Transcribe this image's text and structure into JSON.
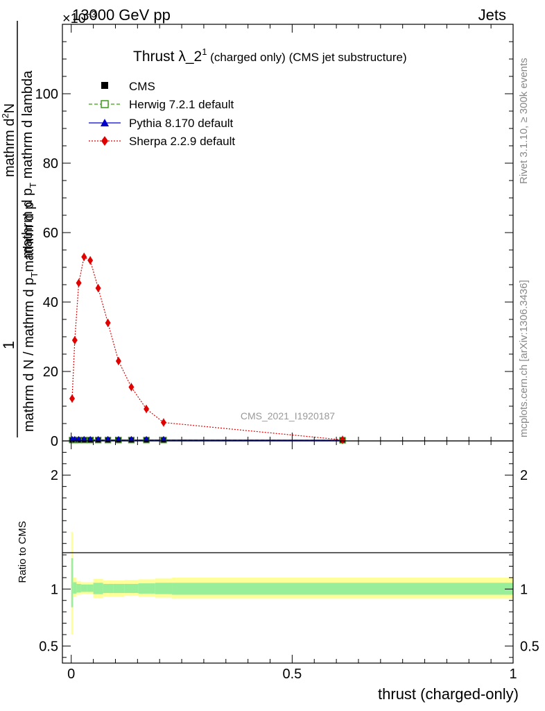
{
  "header": {
    "left": "13000 GeV pp",
    "right": "Jets",
    "exponent": "×10",
    "exponent_power": "−3"
  },
  "side_labels": {
    "upper": "Rivet 3.1.10, ≥ 300k events",
    "lower": "mcplots.cern.ch [arXiv:1306.3436]"
  },
  "title": {
    "main": "Thrust λ_2",
    "sup": "1",
    "rest": " (charged only) (CMS jet substructure)"
  },
  "watermark": "CMS_2021_I1920187",
  "ylabel_parts": {
    "one": "1",
    "denominator": "mathrm d N / mathrm d p",
    "denominator_sub": "T",
    "denominator_rest": "mathrm d p",
    "numerator": "mathrm d",
    "numerator_sup": "2",
    "numerator_rest": "N",
    "numerator_line2": "mathrm d p",
    "numerator_line2_sub": "T",
    "numerator_line2_rest": " mathrm d lambda"
  },
  "legend": [
    {
      "label": "CMS",
      "color": "#000000",
      "marker": "square-filled"
    },
    {
      "label": "Herwig 7.2.1 default",
      "color": "#3a9a17",
      "marker": "square-open",
      "dash": "dashed"
    },
    {
      "label": "Pythia 8.170 default",
      "color": "#0000cc",
      "marker": "triangle",
      "dash": "solid"
    },
    {
      "label": "Sherpa 2.2.9 default",
      "color": "#e00000",
      "marker": "diamond",
      "dash": "dotted"
    }
  ],
  "chart_data": [
    {
      "type": "line",
      "title": "Thrust λ_2^1 (charged only) (CMS jet substructure)",
      "xlim": [
        -0.02,
        1.0
      ],
      "ylim": [
        0,
        120
      ],
      "y_ticks": [
        0,
        20,
        40,
        60,
        80,
        100
      ],
      "series": [
        {
          "name": "Sherpa 2.2.9 default",
          "x": [
            0.002,
            0.008,
            0.017,
            0.029,
            0.043,
            0.061,
            0.083,
            0.107,
            0.136,
            0.17,
            0.209,
            0.614
          ],
          "values": [
            12.2,
            29.0,
            45.5,
            53.0,
            52.0,
            44.0,
            34.0,
            23.0,
            15.5,
            9.2,
            5.3,
            0.3
          ]
        },
        {
          "name": "CMS",
          "x": [
            0.002,
            0.008,
            0.017,
            0.029,
            0.043,
            0.061,
            0.083,
            0.107,
            0.136,
            0.17,
            0.209,
            0.614
          ],
          "values": [
            0.05,
            0.05,
            0.05,
            0.05,
            0.05,
            0.05,
            0.05,
            0.05,
            0.05,
            0.05,
            0.05,
            0.0
          ]
        },
        {
          "name": "Herwig 7.2.1 default",
          "x": [
            0.002,
            0.008,
            0.017,
            0.029,
            0.043,
            0.061,
            0.083,
            0.107,
            0.136,
            0.17,
            0.209,
            0.614
          ],
          "values": [
            0.05,
            0.05,
            0.05,
            0.05,
            0.05,
            0.05,
            0.05,
            0.05,
            0.05,
            0.05,
            0.05,
            0.0
          ]
        },
        {
          "name": "Pythia 8.170 default",
          "x": [
            0.002,
            0.008,
            0.017,
            0.029,
            0.043,
            0.061,
            0.083,
            0.107,
            0.136,
            0.17,
            0.209,
            0.614
          ],
          "values": [
            0.05,
            0.05,
            0.05,
            0.05,
            0.05,
            0.05,
            0.05,
            0.05,
            0.05,
            0.05,
            0.05,
            0.0
          ]
        }
      ]
    },
    {
      "type": "area",
      "ylabel": "Ratio to CMS",
      "xlabel": "thrust (charged-only)",
      "xlim": [
        -0.02,
        1.0
      ],
      "ylim": [
        0.35,
        2.3
      ],
      "y_ticks": [
        0.5,
        1,
        2
      ],
      "x_ticks": [
        0,
        0.5,
        1
      ],
      "bands": {
        "edges": [
          0.0,
          0.004,
          0.012,
          0.022,
          0.036,
          0.05,
          0.072,
          0.095,
          0.12,
          0.152,
          0.19,
          0.228,
          1.0
        ],
        "stat_sys_lo": [
          0.6,
          0.93,
          0.95,
          0.955,
          0.955,
          0.92,
          0.935,
          0.935,
          0.94,
          0.935,
          0.925,
          0.915
        ],
        "stat_sys_hi": [
          1.5,
          1.1,
          1.07,
          1.06,
          1.06,
          1.09,
          1.075,
          1.075,
          1.08,
          1.085,
          1.095,
          1.1
        ],
        "stat_lo": [
          0.84,
          0.96,
          0.97,
          0.975,
          0.975,
          0.955,
          0.965,
          0.965,
          0.965,
          0.96,
          0.955,
          0.95
        ],
        "stat_hi": [
          1.27,
          1.06,
          1.045,
          1.04,
          1.04,
          1.055,
          1.045,
          1.045,
          1.045,
          1.05,
          1.055,
          1.055
        ]
      }
    }
  ]
}
